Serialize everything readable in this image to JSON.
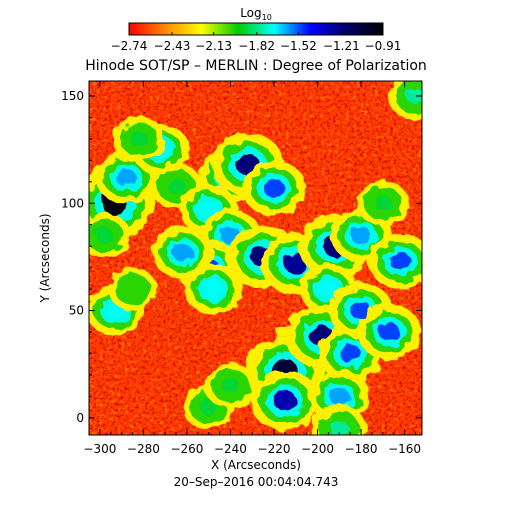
{
  "chart_data": {
    "type": "heatmap",
    "title": "Hinode SOT/SP – MERLIN : Degree of Polarization",
    "xlabel": "X (Arcseconds)",
    "ylabel": "Y (Arcseconds)",
    "xlim": [
      -305,
      -152
    ],
    "ylim": [
      -8,
      157
    ],
    "x_ticks": [
      -300,
      -280,
      -260,
      -240,
      -220,
      -200,
      -180,
      -160
    ],
    "y_ticks": [
      0,
      50,
      100,
      150
    ],
    "x_tick_labels": [
      "−300",
      "−280",
      "−260",
      "−240",
      "−220",
      "−200",
      "−180",
      "−160"
    ],
    "y_tick_labels": [
      "0",
      "50",
      "100",
      "150"
    ],
    "timestamp": "20–Sep–2016 00:04:04.743",
    "colorbar": {
      "label_main": "Log",
      "label_sub": "10",
      "min": -2.74,
      "max": -0.91,
      "ticks": [
        -2.74,
        -2.43,
        -2.13,
        -1.82,
        -1.52,
        -1.21,
        -0.91
      ],
      "tick_labels": [
        "−2.74",
        "−2.43",
        "−2.13",
        "−1.82",
        "−1.52",
        "−1.21",
        "−0.91"
      ],
      "colors": [
        "#ff0000",
        "#ff8800",
        "#ffff00",
        "#00cc00",
        "#00ffff",
        "#0000ff",
        "#000066",
        "#000000"
      ]
    },
    "features": [
      {
        "x": -293,
        "y": 100,
        "value": -0.95
      },
      {
        "x": -288,
        "y": 112,
        "value": -1.6
      },
      {
        "x": -272,
        "y": 125,
        "value": -1.7
      },
      {
        "x": -282,
        "y": 130,
        "value": -1.9
      },
      {
        "x": -265,
        "y": 108,
        "value": -1.9
      },
      {
        "x": -240,
        "y": 113,
        "value": -1.5
      },
      {
        "x": -232,
        "y": 118,
        "value": -1.2
      },
      {
        "x": -220,
        "y": 107,
        "value": -1.5
      },
      {
        "x": -250,
        "y": 97,
        "value": -1.7
      },
      {
        "x": -240,
        "y": 85,
        "value": -1.6
      },
      {
        "x": -250,
        "y": 70,
        "value": -1.5
      },
      {
        "x": -262,
        "y": 77,
        "value": -1.6
      },
      {
        "x": -248,
        "y": 60,
        "value": -1.7
      },
      {
        "x": -225,
        "y": 75,
        "value": -1.2
      },
      {
        "x": -210,
        "y": 72,
        "value": -1.25
      },
      {
        "x": -192,
        "y": 80,
        "value": -1.2
      },
      {
        "x": -180,
        "y": 85,
        "value": -1.6
      },
      {
        "x": -195,
        "y": 60,
        "value": -1.7
      },
      {
        "x": -205,
        "y": 30,
        "value": -1.0
      },
      {
        "x": -215,
        "y": 22,
        "value": -1.05
      },
      {
        "x": -198,
        "y": 38,
        "value": -1.2
      },
      {
        "x": -185,
        "y": 30,
        "value": -1.5
      },
      {
        "x": -215,
        "y": 8,
        "value": -1.3
      },
      {
        "x": -190,
        "y": 10,
        "value": -1.6
      },
      {
        "x": -180,
        "y": 50,
        "value": -1.5
      },
      {
        "x": -167,
        "y": 40,
        "value": -1.5
      },
      {
        "x": -162,
        "y": 73,
        "value": -1.5
      },
      {
        "x": -293,
        "y": 50,
        "value": -1.7
      },
      {
        "x": -285,
        "y": 60,
        "value": -2.0
      },
      {
        "x": -250,
        "y": 5,
        "value": -1.9
      },
      {
        "x": -240,
        "y": 15,
        "value": -1.9
      },
      {
        "x": -190,
        "y": -5,
        "value": -1.8
      },
      {
        "x": -155,
        "y": 150,
        "value": -1.8
      },
      {
        "x": -298,
        "y": 85,
        "value": -1.9
      },
      {
        "x": -170,
        "y": 100,
        "value": -1.9
      }
    ]
  }
}
